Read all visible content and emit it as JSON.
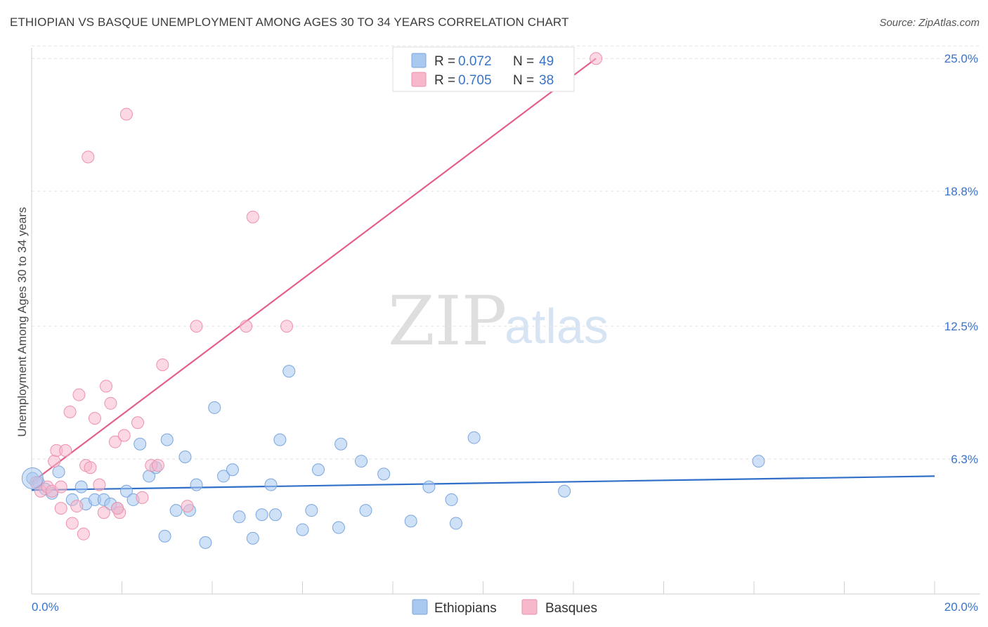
{
  "title": "ETHIOPIAN VS BASQUE UNEMPLOYMENT AMONG AGES 30 TO 34 YEARS CORRELATION CHART",
  "source": "Source: ZipAtlas.com",
  "watermark": {
    "zip": "ZIP",
    "atlas": "atlas"
  },
  "legend_top": {
    "rows": [
      {
        "r_label": "R = ",
        "r_value": "0.072",
        "n_label": "N = ",
        "n_value": "49",
        "color": "#a8c8f0"
      },
      {
        "r_label": "R = ",
        "r_value": "0.705",
        "n_label": "N = ",
        "n_value": "38",
        "color": "#f7b8cc"
      }
    ]
  },
  "chart_data": {
    "type": "scatter",
    "title": "ETHIOPIAN VS BASQUE UNEMPLOYMENT AMONG AGES 30 TO 34 YEARS CORRELATION CHART",
    "xlabel": "",
    "ylabel": "Unemployment Among Ages 30 to 34 years",
    "xlim": [
      0,
      20
    ],
    "ylim": [
      0,
      25.5
    ],
    "x_tick_labels": [
      "0.0%",
      "20.0%"
    ],
    "y_ticks": [
      6.3,
      12.5,
      18.8,
      25.0
    ],
    "y_tick_labels": [
      "6.3%",
      "12.5%",
      "18.8%",
      "25.0%"
    ],
    "grid": true,
    "legend_position": "top-center",
    "series": [
      {
        "name": "Ethiopians",
        "color": "#a8c8f0",
        "stroke": "#7aa6de",
        "trend": {
          "x": [
            0.0,
            20.0
          ],
          "y": [
            4.85,
            5.5
          ],
          "color": "#2f6fc8"
        },
        "points": [
          [
            0.02,
            5.4
          ],
          [
            0.15,
            5.2
          ],
          [
            0.3,
            4.9
          ],
          [
            0.45,
            4.7
          ],
          [
            0.6,
            5.7
          ],
          [
            0.9,
            4.4
          ],
          [
            1.1,
            5.0
          ],
          [
            1.2,
            4.2
          ],
          [
            1.4,
            4.4
          ],
          [
            1.6,
            4.4
          ],
          [
            1.75,
            4.2
          ],
          [
            1.9,
            4.0
          ],
          [
            2.1,
            4.8
          ],
          [
            2.25,
            4.4
          ],
          [
            2.4,
            7.0
          ],
          [
            2.6,
            5.5
          ],
          [
            2.75,
            5.9
          ],
          [
            2.95,
            2.7
          ],
          [
            3.0,
            7.2
          ],
          [
            3.2,
            3.9
          ],
          [
            3.4,
            6.4
          ],
          [
            3.5,
            3.9
          ],
          [
            3.65,
            5.1
          ],
          [
            3.85,
            2.4
          ],
          [
            4.05,
            8.7
          ],
          [
            4.25,
            5.5
          ],
          [
            4.45,
            5.8
          ],
          [
            4.6,
            3.6
          ],
          [
            4.9,
            2.6
          ],
          [
            5.1,
            3.7
          ],
          [
            5.3,
            5.1
          ],
          [
            5.4,
            3.7
          ],
          [
            5.5,
            7.2
          ],
          [
            5.7,
            10.4
          ],
          [
            6.0,
            3.0
          ],
          [
            6.2,
            3.9
          ],
          [
            6.35,
            5.8
          ],
          [
            6.8,
            3.1
          ],
          [
            6.85,
            7.0
          ],
          [
            7.3,
            6.2
          ],
          [
            7.4,
            3.9
          ],
          [
            7.8,
            5.6
          ],
          [
            8.4,
            3.4
          ],
          [
            8.8,
            5.0
          ],
          [
            9.3,
            4.4
          ],
          [
            9.4,
            3.3
          ],
          [
            9.8,
            7.3
          ],
          [
            11.8,
            4.8
          ],
          [
            16.1,
            6.2
          ]
        ]
      },
      {
        "name": "Basques",
        "color": "#f7b8cc",
        "stroke": "#ee91ad",
        "trend": {
          "x": [
            0.0,
            12.5
          ],
          "y": [
            5.2,
            25.0
          ],
          "color": "#e3608a"
        },
        "points": [
          [
            0.1,
            5.2
          ],
          [
            0.2,
            4.8
          ],
          [
            0.35,
            5.0
          ],
          [
            0.45,
            4.8
          ],
          [
            0.5,
            6.2
          ],
          [
            0.55,
            6.7
          ],
          [
            0.65,
            4.0
          ],
          [
            0.75,
            6.7
          ],
          [
            0.85,
            8.5
          ],
          [
            0.9,
            3.3
          ],
          [
            1.0,
            4.1
          ],
          [
            1.05,
            9.3
          ],
          [
            1.15,
            2.8
          ],
          [
            1.2,
            6.0
          ],
          [
            1.3,
            5.9
          ],
          [
            1.4,
            8.2
          ],
          [
            1.5,
            5.1
          ],
          [
            1.6,
            3.8
          ],
          [
            1.65,
            9.7
          ],
          [
            1.75,
            8.9
          ],
          [
            1.85,
            7.1
          ],
          [
            1.95,
            3.8
          ],
          [
            2.05,
            7.4
          ],
          [
            2.1,
            22.4
          ],
          [
            2.35,
            8.0
          ],
          [
            2.45,
            4.5
          ],
          [
            2.65,
            6.0
          ],
          [
            2.8,
            6.0
          ],
          [
            2.9,
            10.7
          ],
          [
            1.25,
            20.4
          ],
          [
            3.45,
            4.1
          ],
          [
            3.65,
            12.5
          ],
          [
            4.75,
            12.5
          ],
          [
            4.9,
            17.6
          ],
          [
            5.65,
            12.5
          ],
          [
            12.5,
            25.0
          ],
          [
            0.65,
            5.0
          ],
          [
            1.9,
            4.0
          ]
        ]
      }
    ]
  },
  "bottom_legend": [
    {
      "label": "Ethiopians",
      "color": "#a8c8f0"
    },
    {
      "label": "Basques",
      "color": "#f7b8cc"
    }
  ]
}
